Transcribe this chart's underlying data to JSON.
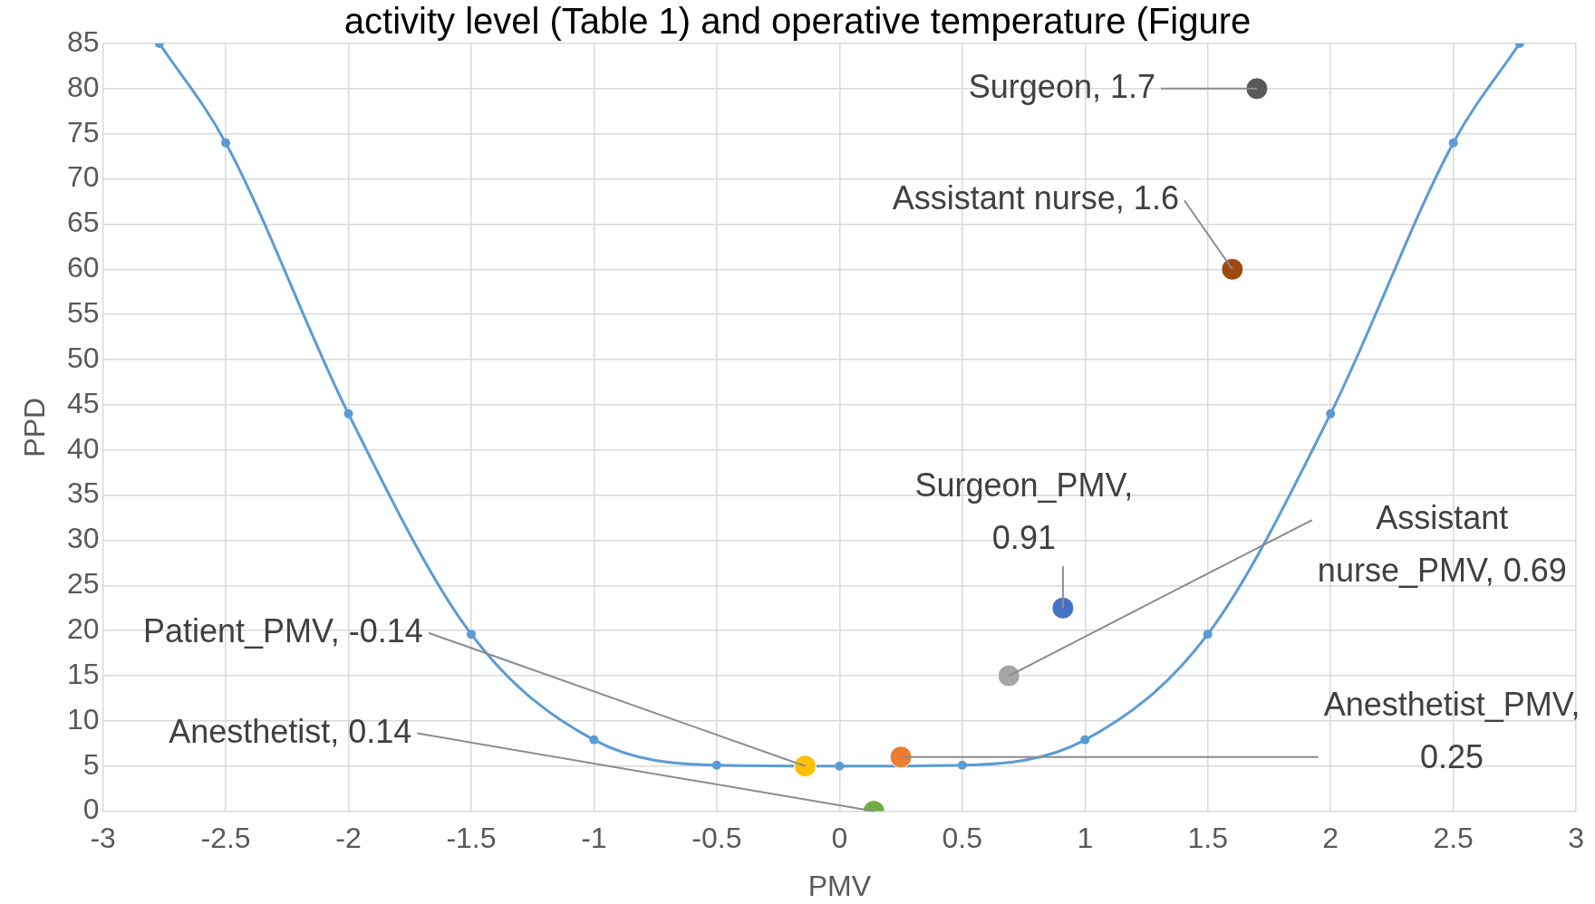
{
  "chart_data": {
    "type": "scatter",
    "title": "activity level (Table 1) and operative temperature (Figure",
    "xlabel": "PMV",
    "ylabel": "PPD",
    "xlim": [
      -3,
      3
    ],
    "xticks": [
      -3,
      -2.5,
      -2,
      -1.5,
      -1,
      -0.5,
      0,
      0.5,
      1,
      1.5,
      2,
      2.5,
      3
    ],
    "ylim": [
      0,
      85
    ],
    "yticks": [
      0,
      5,
      10,
      15,
      20,
      25,
      30,
      35,
      40,
      45,
      50,
      55,
      60,
      65,
      70,
      75,
      80,
      85
    ],
    "grid": true,
    "legend": false,
    "series": [
      {
        "type": "line",
        "color": "#5b9bd5",
        "marker": "circle",
        "x": [
          -2.77,
          -2.5,
          -2,
          -1.5,
          -1,
          -0.5,
          0,
          0.5,
          1,
          1.5,
          2,
          2.5,
          2.77
        ],
        "values": [
          85,
          74,
          44,
          19.6,
          7.9,
          5.1,
          5,
          5.1,
          7.9,
          19.6,
          44,
          74,
          85
        ]
      },
      {
        "color": "#595959",
        "x": [
          1.7
        ],
        "values": [
          80
        ]
      },
      {
        "color": "#9e480e",
        "x": [
          1.6
        ],
        "values": [
          60
        ]
      },
      {
        "color": "#4472c4",
        "x": [
          0.91
        ],
        "values": [
          22.5
        ]
      },
      {
        "color": "#a5a5a5",
        "x": [
          0.69
        ],
        "values": [
          15
        ]
      },
      {
        "color": "#ed7d31",
        "x": [
          0.25
        ],
        "values": [
          6
        ]
      },
      {
        "color": "#ffc000",
        "x": [
          -0.14
        ],
        "values": [
          5
        ]
      },
      {
        "color": "#70ad47",
        "x": [
          0.14
        ],
        "values": [
          0
        ]
      }
    ],
    "annotations": [
      {
        "text": "Surgeon, 1.7",
        "x": 1.7,
        "y": 80
      },
      {
        "text": "Assistant nurse, 1.6",
        "x": 1.6,
        "y": 60
      },
      {
        "text": "Surgeon_PMV, 0.91",
        "x": 0.91,
        "y": 22.5
      },
      {
        "text": "Assistant nurse_PMV, 0.69",
        "x": 0.69,
        "y": 15
      },
      {
        "text": "Anesthetist_PMV, 0.25",
        "x": 0.25,
        "y": 6
      },
      {
        "text": "Patient_PMV, -0.14",
        "x": -0.14,
        "y": 5
      },
      {
        "text": "Anesthetist, 0.14",
        "x": 0.14,
        "y": 0
      }
    ]
  }
}
